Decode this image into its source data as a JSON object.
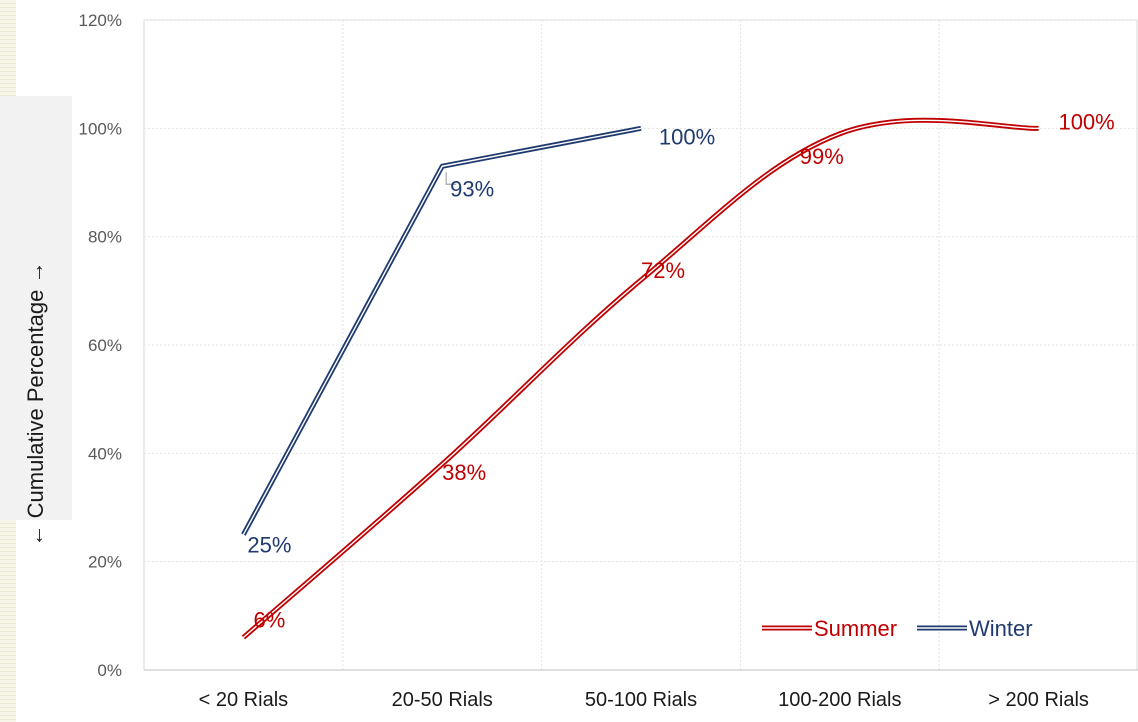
{
  "chart_data": {
    "type": "line",
    "ylabel": "← Cumulative Percentage →",
    "categories": [
      "< 20 Rials",
      "20-50 Rials",
      "50-100 Rials",
      "100-200 Rials",
      "> 200 Rials"
    ],
    "yticks": [
      "0%",
      "20%",
      "40%",
      "60%",
      "80%",
      "100%",
      "120%"
    ],
    "ylim": [
      0,
      120
    ],
    "grid": true,
    "legend_position": "bottom-right",
    "series": [
      {
        "name": "Summer",
        "color": "#c00000",
        "values": [
          6,
          38,
          72,
          99,
          100
        ],
        "labels": [
          "6%",
          "38%",
          "72%",
          "99%",
          "100%"
        ]
      },
      {
        "name": "Winter",
        "color": "#1f3a6e",
        "values": [
          25,
          93,
          100,
          null,
          null
        ],
        "labels": [
          "25%",
          "93%",
          "100%",
          "",
          ""
        ]
      }
    ]
  }
}
